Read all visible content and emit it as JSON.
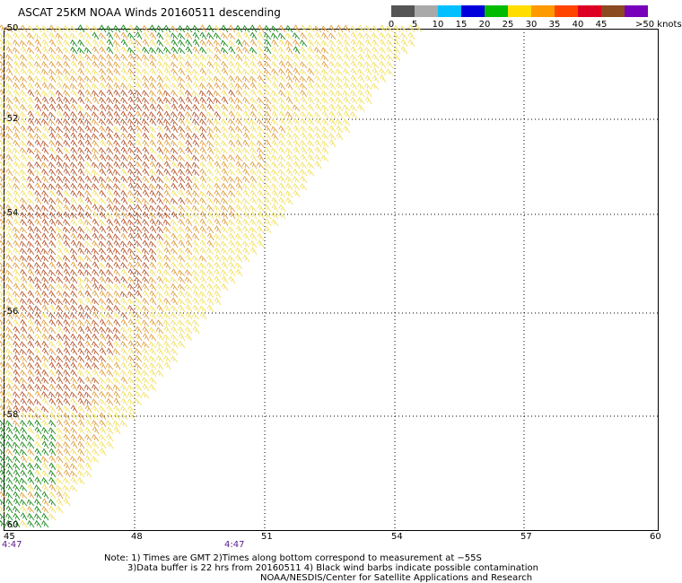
{
  "header": {
    "title": "ASCAT 25KM NOAA Winds 20160511 descending"
  },
  "legend": {
    "bins": [
      {
        "label": "0",
        "color": "#555555"
      },
      {
        "label": "5",
        "color": "#a9a9a9"
      },
      {
        "label": "10",
        "color": "#00c0ff"
      },
      {
        "label": "15",
        "color": "#0000dd"
      },
      {
        "label": "20",
        "color": "#00bb00"
      },
      {
        "label": "25",
        "color": "#ffdd00"
      },
      {
        "label": "30",
        "color": "#ff9900"
      },
      {
        "label": "35",
        "color": "#ff4400"
      },
      {
        "label": "40",
        "color": "#dd0022"
      },
      {
        "label": "45",
        "color": "#8b4a20"
      },
      {
        "label": ">50 knots",
        "color": "#ff33ff"
      }
    ],
    "end_color": "#7700bb"
  },
  "map": {
    "lat_labels": [
      "-50",
      "-52",
      "-54",
      "-56",
      "-58",
      "-60"
    ],
    "lon_labels": [
      "45",
      "48",
      "51",
      "54",
      "57",
      "60"
    ],
    "time_labels": [
      "4:47",
      "4:47"
    ],
    "colors": {
      "calm_green": "#1a8a1a",
      "yellow": "#f2e060",
      "orange": "#e0a040",
      "red_brown": "#b85a30",
      "grid": "#000000"
    }
  },
  "footer": {
    "note_line1": "Note: 1) Times are GMT 2)Times along bottom correspond to measurement at −55S",
    "note_line2": "3)Data buffer is 22 hrs from 20160511 4) Black wind barbs indicate possible contamination",
    "note_line3": "NOAA/NESDIS/Center for Satellite Applications and Research"
  }
}
